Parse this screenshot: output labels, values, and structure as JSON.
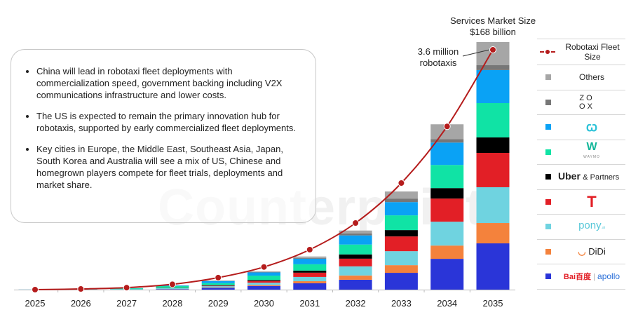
{
  "chart_data": {
    "type": "bar",
    "stacked": true,
    "categories": [
      "2025",
      "2026",
      "2027",
      "2028",
      "2029",
      "2030",
      "2031",
      "2032",
      "2033",
      "2034",
      "2035"
    ],
    "bar_unit": "USD billion (services market size)",
    "series": [
      {
        "name": "Baidu Apollo",
        "color": "#2a35d8",
        "values": [
          0.05,
          0.1,
          0.1,
          0.3,
          1.2,
          2.5,
          4.3,
          6.7,
          11.4,
          20.9,
          31.4
        ]
      },
      {
        "name": "DiDi",
        "color": "#f4823c",
        "values": [
          0,
          0,
          0,
          0.1,
          0.3,
          0.7,
          1.4,
          2.9,
          5.2,
          9.0,
          13.8
        ]
      },
      {
        "name": "Pony.ai",
        "color": "#6fd3e0",
        "values": [
          0.02,
          0.05,
          0.2,
          0.6,
          0.8,
          1.5,
          2.9,
          6.2,
          9.5,
          16.2,
          24.3
        ]
      },
      {
        "name": "Tesla",
        "color": "#e21f26",
        "values": [
          0,
          0,
          0,
          0.1,
          0.4,
          1.2,
          2.9,
          5.2,
          10.0,
          15.7,
          23.3
        ]
      },
      {
        "name": "Uber & Partners",
        "color": "#000000",
        "values": [
          0,
          0,
          0,
          0.1,
          0.3,
          0.6,
          1.4,
          2.9,
          4.3,
          7.1,
          10.5
        ]
      },
      {
        "name": "Waymo",
        "color": "#10e3a5",
        "values": [
          0.03,
          0.1,
          0.6,
          1.2,
          1.4,
          3.0,
          4.3,
          6.7,
          10.0,
          15.7,
          23.3
        ]
      },
      {
        "name": "WeRide",
        "color": "#0aa2f5",
        "values": [
          0,
          0.03,
          0.1,
          0.4,
          1.4,
          2.2,
          3.8,
          6.2,
          9.0,
          15.2,
          22.4
        ]
      },
      {
        "name": "Zoox",
        "color": "#777777",
        "values": [
          0,
          0,
          0,
          0.05,
          0.1,
          0.3,
          0.5,
          1.4,
          2.4,
          2.4,
          3.3
        ]
      },
      {
        "name": "Others",
        "color": "#a6a6a6",
        "values": [
          0,
          0.02,
          0.1,
          0.05,
          0.3,
          0.4,
          1.0,
          1.9,
          4.8,
          10.0,
          15.7
        ]
      }
    ],
    "line": {
      "name": "Robotaxi Fleet Size",
      "unit": "million robotaxis",
      "color": "#b51c1c",
      "values": [
        0,
        0.01,
        0.03,
        0.08,
        0.18,
        0.34,
        0.6,
        1.0,
        1.6,
        2.45,
        3.6
      ]
    },
    "ylim_bars": [
      0,
      168
    ],
    "ylim_line": [
      0,
      3.6
    ],
    "y_axis_shown": false,
    "grid": false,
    "legend_placement": "right"
  },
  "annotations": {
    "market_size_line1": "Services Market Size",
    "market_size_line2": "$168 billion",
    "fleet_line1": "3.6 million",
    "fleet_line2": "robotaxis"
  },
  "bullets": [
    "China will lead in robotaxi fleet deployments with commercialization speed, government backing including V2X communications infrastructure and lower costs.",
    "The US is expected to remain the primary innovation hub for robotaxis, supported by early commercialized fleet deployments.",
    "Key cities in Europe, the Middle East, Southeast Asia, Japan, South Korea and Australia will see a mix of US, Chinese and homegrown players compete for fleet trials, deployments and market share."
  ],
  "legend": {
    "fleet": "Robotaxi Fleet Size",
    "others": "Others",
    "zoox": "ZO OX",
    "waymo": "WAYMO",
    "uber": "Uber",
    "uber_suffix": "& Partners",
    "pony": "pony",
    "pony_suffix": ".ai",
    "didi": "DiDi",
    "baidu": "Bai百度",
    "apollo": "apollo"
  },
  "watermark": "Counterpoint"
}
